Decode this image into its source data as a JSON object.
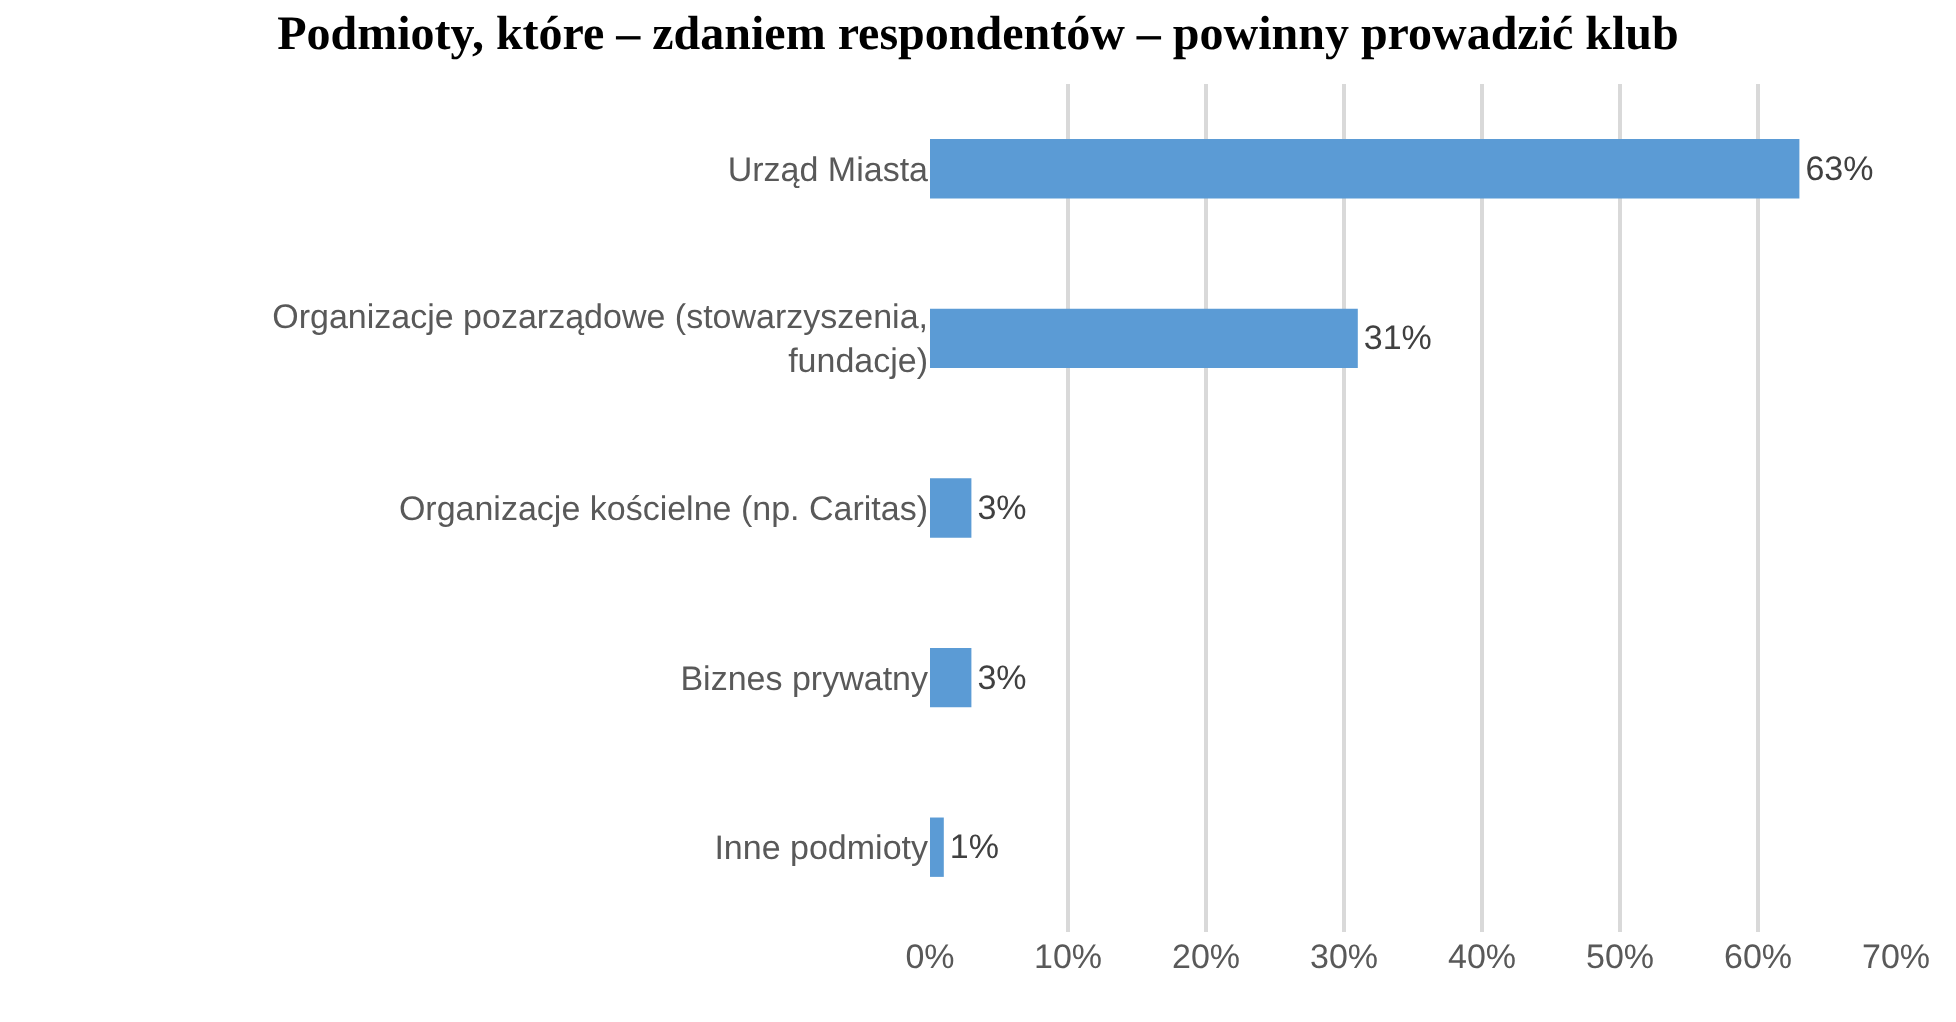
{
  "chart_data": {
    "type": "bar",
    "orientation": "horizontal",
    "title": "Podmioty, które – zdaniem respondentów – powinny prowadzić klub",
    "categories": [
      "Urząd Miasta",
      "Organizacje pozarządowe (stowarzyszenia, fundacje)",
      "Organizacje kościelne (np. Caritas)",
      "Biznes prywatny",
      "Inne podmioty"
    ],
    "values": [
      63,
      31,
      3,
      3,
      1
    ],
    "value_labels": [
      "63%",
      "31%",
      "3%",
      "3%",
      "1%"
    ],
    "color": "#5b9bd5",
    "xlim": [
      0,
      70
    ],
    "xticks": [
      {
        "value": 0,
        "label": "0%"
      },
      {
        "value": 10,
        "label": "10%"
      },
      {
        "value": 20,
        "label": "20%"
      },
      {
        "value": 30,
        "label": "30%"
      },
      {
        "value": 40,
        "label": "40%"
      },
      {
        "value": 50,
        "label": "50%"
      },
      {
        "value": 60,
        "label": "60%"
      },
      {
        "value": 70,
        "label": "70%"
      }
    ],
    "grid": "x",
    "legend": false
  }
}
